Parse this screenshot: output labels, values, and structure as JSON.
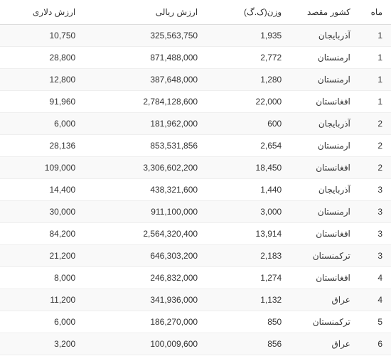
{
  "table": {
    "columns": [
      {
        "key": "month",
        "label": "ماه"
      },
      {
        "key": "country",
        "label": "کشور مقصد"
      },
      {
        "key": "weight",
        "label": "وزن(ک.گ)"
      },
      {
        "key": "rial",
        "label": "ارزش ریالی"
      },
      {
        "key": "dollar",
        "label": "ارزش دلاری"
      }
    ],
    "rows": [
      {
        "month": "1",
        "country": "آذربایجان",
        "weight": "1,935",
        "rial": "325,563,750",
        "dollar": "10,750"
      },
      {
        "month": "1",
        "country": "ارمنستان",
        "weight": "2,772",
        "rial": "871,488,000",
        "dollar": "28,800"
      },
      {
        "month": "1",
        "country": "ارمنستان",
        "weight": "1,280",
        "rial": "387,648,000",
        "dollar": "12,800"
      },
      {
        "month": "1",
        "country": "افغانستان",
        "weight": "22,000",
        "rial": "2,784,128,600",
        "dollar": "91,960"
      },
      {
        "month": "2",
        "country": "آذربایجان",
        "weight": "600",
        "rial": "181,962,000",
        "dollar": "6,000"
      },
      {
        "month": "2",
        "country": "ارمنستان",
        "weight": "2,654",
        "rial": "853,531,856",
        "dollar": "28,136"
      },
      {
        "month": "2",
        "country": "افغانستان",
        "weight": "18,450",
        "rial": "3,306,602,200",
        "dollar": "109,000"
      },
      {
        "month": "3",
        "country": "آذربایجان",
        "weight": "1,440",
        "rial": "438,321,600",
        "dollar": "14,400"
      },
      {
        "month": "3",
        "country": "ارمنستان",
        "weight": "3,000",
        "rial": "911,100,000",
        "dollar": "30,000"
      },
      {
        "month": "3",
        "country": "افغانستان",
        "weight": "13,914",
        "rial": "2,564,320,400",
        "dollar": "84,200"
      },
      {
        "month": "3",
        "country": "ترکمنستان",
        "weight": "2,183",
        "rial": "646,303,200",
        "dollar": "21,200"
      },
      {
        "month": "4",
        "country": "افغانستان",
        "weight": "1,274",
        "rial": "246,832,000",
        "dollar": "8,000"
      },
      {
        "month": "4",
        "country": "عراق",
        "weight": "1,132",
        "rial": "341,936,000",
        "dollar": "11,200"
      },
      {
        "month": "5",
        "country": "ترکمنستان",
        "weight": "850",
        "rial": "186,270,000",
        "dollar": "6,000"
      },
      {
        "month": "6",
        "country": "عراق",
        "weight": "856",
        "rial": "100,009,600",
        "dollar": "3,200"
      }
    ]
  }
}
